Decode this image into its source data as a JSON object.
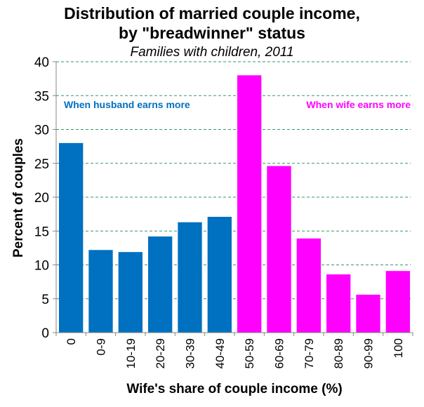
{
  "chart_data": {
    "type": "bar",
    "title": "Distribution of married couple income, by \"breadwinner\" status",
    "title_lines": [
      "Distribution of married couple income,",
      "by \"breadwinner\" status"
    ],
    "subtitle": "Families with children, 2011",
    "xlabel": "Wife's share of couple income (%)",
    "ylabel": "Percent of couples",
    "ylim": [
      0,
      40
    ],
    "yticks": [
      0,
      5,
      10,
      15,
      20,
      25,
      30,
      35,
      40
    ],
    "grid": true,
    "categories": [
      "0",
      "0-9",
      "10-19",
      "20-29",
      "30-39",
      "40-49",
      "50-59",
      "60-69",
      "70-79",
      "80-89",
      "90-99",
      "100"
    ],
    "values": [
      28.0,
      12.2,
      11.9,
      14.2,
      16.3,
      17.1,
      38.0,
      24.6,
      13.9,
      8.6,
      5.6,
      9.1
    ],
    "bar_groups": [
      "husband",
      "husband",
      "husband",
      "husband",
      "husband",
      "husband",
      "wife",
      "wife",
      "wife",
      "wife",
      "wife",
      "wife"
    ],
    "annotations": [
      {
        "text": "When husband earns more",
        "group": "husband"
      },
      {
        "text": "When wife earns more",
        "group": "wife"
      }
    ],
    "colors": {
      "husband": "#0070C0",
      "wife": "#FF00FF",
      "grid": "#339966",
      "axis": "#868686"
    }
  }
}
